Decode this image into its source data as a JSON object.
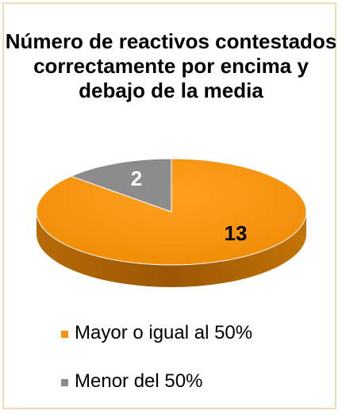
{
  "chart_data": {
    "type": "pie",
    "style": "3d",
    "title": "Número de reactivos contestados correctamente por encima y debajo de la media",
    "categories": [
      "Mayor o igual al 50%",
      "Menor del 50%"
    ],
    "values": [
      13,
      2
    ],
    "data_labels": [
      "13",
      "2"
    ],
    "colors": [
      "#f7930a",
      "#8c8c8c"
    ],
    "legend_position": "bottom"
  }
}
